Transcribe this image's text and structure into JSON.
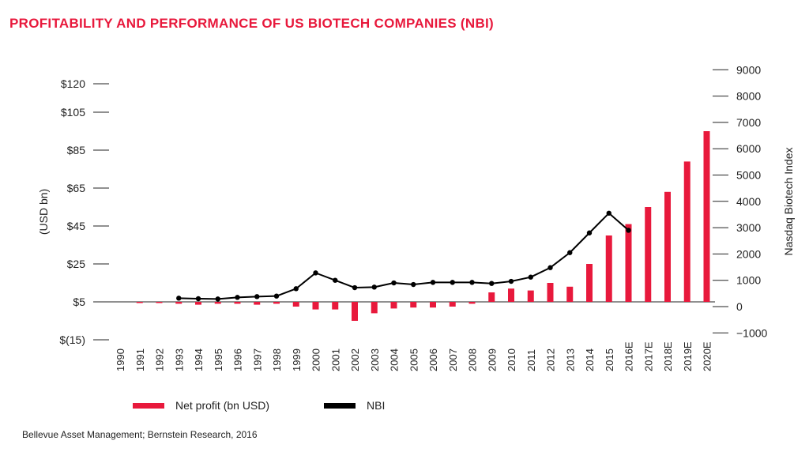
{
  "title": "PROFITABILITY AND PERFORMANCE OF US BIOTECH COMPANIES (NBI)",
  "source": "Bellevue Asset Management; Bernstein Research, 2016",
  "colors": {
    "bar": "#e8193c",
    "line": "#000000",
    "title": "#e8193c"
  },
  "chart_data": {
    "type": "bar+line",
    "categories": [
      "1990",
      "1991",
      "1992",
      "1993",
      "1994",
      "1995",
      "1996",
      "1997",
      "1998",
      "1999",
      "2000",
      "2001",
      "2002",
      "2003",
      "2004",
      "2005",
      "2006",
      "2007",
      "2008",
      "2009",
      "2010",
      "2011",
      "2012",
      "2013",
      "2014",
      "2015",
      "2016E",
      "2017E",
      "2018E",
      "2019E",
      "2020E"
    ],
    "ylabel_left": "(USD bn)",
    "ylabel_right": "Nasdaq Biotech Index",
    "yticks_left": [
      {
        "value": 120,
        "label": "$120"
      },
      {
        "value": 105,
        "label": "$105"
      },
      {
        "value": 85,
        "label": "$85"
      },
      {
        "value": 65,
        "label": "$65"
      },
      {
        "value": 45,
        "label": "$45"
      },
      {
        "value": 25,
        "label": "$25"
      },
      {
        "value": 5,
        "label": "$5"
      },
      {
        "value": -15,
        "label": "$(15)"
      }
    ],
    "yticks_right": [
      {
        "value": 9000,
        "label": "9000"
      },
      {
        "value": 8000,
        "label": "8000"
      },
      {
        "value": 7000,
        "label": "7000"
      },
      {
        "value": 6000,
        "label": "6000"
      },
      {
        "value": 5000,
        "label": "5000"
      },
      {
        "value": 4000,
        "label": "4000"
      },
      {
        "value": 3000,
        "label": "3000"
      },
      {
        "value": 2000,
        "label": "2000"
      },
      {
        "value": 1000,
        "label": "1000"
      },
      {
        "value": 0,
        "label": "0"
      },
      {
        "value": -1000,
        "label": "−1000"
      }
    ],
    "series": [
      {
        "name": "Net profit (bn USD)",
        "type": "bar",
        "axis": "left",
        "values": [
          0,
          -0.5,
          -0.5,
          -1,
          -1.5,
          -1,
          -1,
          -1.5,
          -1,
          -2.5,
          -4,
          -4,
          -10,
          -6,
          -3.5,
          -3,
          -3,
          -2.5,
          -1,
          5,
          7,
          6,
          10,
          8,
          20,
          35,
          41,
          50,
          58,
          74,
          90
        ]
      },
      {
        "name": "NBI",
        "type": "line",
        "axis": "right",
        "values": [
          null,
          null,
          null,
          320,
          300,
          290,
          350,
          380,
          400,
          680,
          1280,
          1000,
          720,
          740,
          900,
          840,
          920,
          920,
          920,
          880,
          960,
          1120,
          1480,
          2050,
          2800,
          3550,
          2900,
          null,
          null,
          null,
          null
        ]
      }
    ]
  }
}
